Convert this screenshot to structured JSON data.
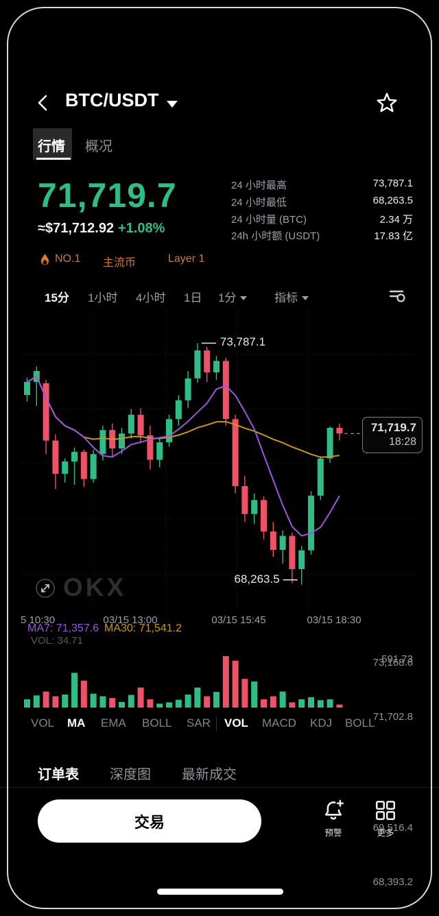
{
  "header": {
    "title": "BTC/USDT"
  },
  "tabs": {
    "items": [
      {
        "label": "行情",
        "active": true
      },
      {
        "label": "概况",
        "active": false
      }
    ]
  },
  "price": {
    "last": "71,719.7",
    "fiat": "≈$71,712.92",
    "change": "+1.08%"
  },
  "stats": [
    {
      "label": "24 小时最高",
      "value": "73,787.1"
    },
    {
      "label": "24 小时最低",
      "value": "68,263.5"
    },
    {
      "label": "24 小时量 (BTC)",
      "value": "2.34 万"
    },
    {
      "label": "24h 小时额 (USDT)",
      "value": "17.83 亿"
    }
  ],
  "badges": [
    {
      "label": "NO.1"
    },
    {
      "label": "主流币"
    },
    {
      "label": "Layer 1"
    }
  ],
  "timeframes": {
    "items": [
      "15分",
      "1小时",
      "4小时",
      "1日"
    ],
    "active": "15分",
    "dropdown": "1分",
    "indicator_label": "指标"
  },
  "chart": {
    "ma7_label": "MA7: 71,357.6",
    "ma30_label": "MA30: 71,541.2",
    "high_label": "73,787.1",
    "low_label": "68,263.5",
    "axis_labels": [
      "73,168.6",
      "71,702.8",
      "69,516.4",
      "68,393.2"
    ],
    "price_badge": {
      "price": "71,719.7",
      "time": "18:28"
    },
    "x_labels": [
      "5 10:30",
      "03/15 13:00",
      "03/15 15:45",
      "03/15 18:30"
    ],
    "watermark": "OKX"
  },
  "volume": {
    "label": "VOL: 34.71",
    "axis_label": "591.73"
  },
  "indicators": {
    "main": [
      "VOL",
      "MA",
      "EMA",
      "BOLL",
      "SAR"
    ],
    "main_active": "MA",
    "sub": [
      "VOL",
      "MACD",
      "KDJ",
      "BOLL"
    ],
    "sub_active": "VOL"
  },
  "bottom_tabs": [
    {
      "label": "订单表",
      "active": true
    },
    {
      "label": "深度图",
      "active": false
    },
    {
      "label": "最新成交",
      "active": false
    }
  ],
  "actions": {
    "trade": "交易",
    "alert": "预警",
    "more": "更多"
  },
  "colors": {
    "up": "#2EBD85",
    "down": "#EF5166",
    "ma7": "#A054E0",
    "ma30": "#C9981F",
    "accent_orange": "#D4782F",
    "price_green": "#2EBD85",
    "grid": "#23232b"
  },
  "chart_data": {
    "type": "candlestick",
    "symbol": "BTC/USDT",
    "interval": "15m",
    "x_start": "10:30",
    "step_minutes": 15,
    "columns": [
      "open",
      "high",
      "low",
      "close",
      "volume"
    ],
    "candles": [
      [
        72600,
        73000,
        72450,
        72900,
        95
      ],
      [
        72900,
        73250,
        72350,
        73150,
        140
      ],
      [
        72870,
        72950,
        71250,
        71560,
        185
      ],
      [
        71560,
        71700,
        70450,
        70800,
        130
      ],
      [
        70800,
        71150,
        70600,
        71080,
        150
      ],
      [
        71080,
        71400,
        70550,
        71300,
        400
      ],
      [
        71300,
        71350,
        70500,
        70680,
        310
      ],
      [
        70680,
        71350,
        70600,
        71250,
        160
      ],
      [
        71250,
        71900,
        71100,
        71800,
        130
      ],
      [
        71800,
        71950,
        71200,
        71380,
        110
      ],
      [
        71380,
        71850,
        71250,
        71720,
        65
      ],
      [
        71720,
        72280,
        71600,
        72150,
        145
      ],
      [
        72150,
        72300,
        71500,
        71680,
        230
      ],
      [
        71680,
        71900,
        70900,
        71120,
        95
      ],
      [
        71120,
        71600,
        70950,
        71520,
        45
      ],
      [
        71520,
        72150,
        71420,
        72050,
        60
      ],
      [
        72050,
        72600,
        71900,
        72480,
        90
      ],
      [
        72480,
        73150,
        72300,
        72980,
        150
      ],
      [
        72980,
        73787.1,
        72880,
        73620,
        230
      ],
      [
        73620,
        73700,
        72900,
        73120,
        130
      ],
      [
        73120,
        73500,
        72950,
        73380,
        180
      ],
      [
        73380,
        73450,
        71900,
        72050,
        591.73
      ],
      [
        72050,
        72150,
        70350,
        70520,
        540
      ],
      [
        70520,
        70750,
        69700,
        69880,
        330
      ],
      [
        69880,
        70350,
        69650,
        70200,
        300
      ],
      [
        70200,
        70280,
        69300,
        69480,
        95
      ],
      [
        69480,
        69700,
        68900,
        69060,
        130
      ],
      [
        69060,
        69500,
        68750,
        69380,
        185
      ],
      [
        69380,
        69450,
        68300,
        68620,
        60
      ],
      [
        68620,
        69150,
        68263.5,
        69050,
        95
      ],
      [
        69050,
        70400,
        68950,
        70300,
        120
      ],
      [
        70300,
        71200,
        70200,
        71150,
        85
      ],
      [
        71150,
        71880,
        71050,
        71850,
        95
      ],
      [
        71850,
        71950,
        71560,
        71719.7,
        34.71
      ]
    ],
    "overlays": [
      {
        "name": "MA7",
        "value": 71357.6
      },
      {
        "name": "MA30",
        "value": 71541.2
      }
    ],
    "price_axis_ticks": [
      73168.6,
      71702.8,
      69516.4,
      68393.2
    ],
    "high_annotation": 73787.1,
    "low_annotation": 68263.5,
    "last_price": 71719.7,
    "last_time": "18:28",
    "volume_axis_tick": 591.73,
    "current_volume": 34.71,
    "x_axis_labels": [
      "5 10:30",
      "03/15 13:00",
      "03/15 15:45",
      "03/15 18:30"
    ]
  }
}
